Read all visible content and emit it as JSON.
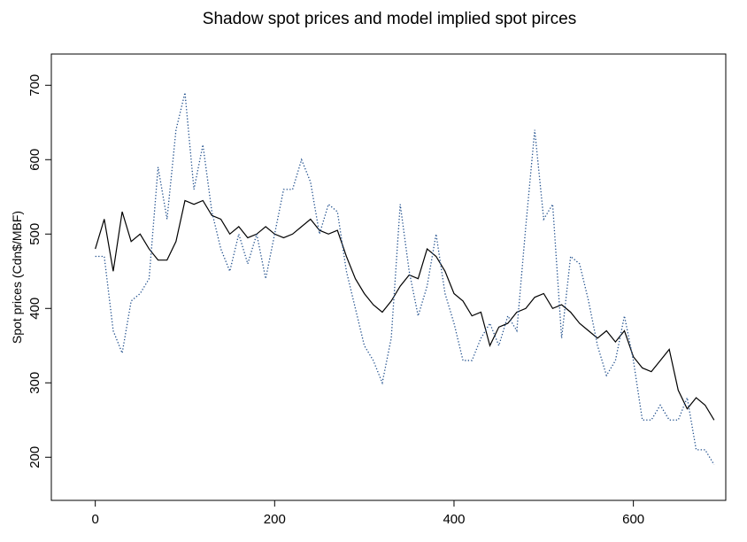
{
  "chart_data": {
    "type": "line",
    "title": "Shadow spot prices and model implied spot pirces",
    "y_label": "Spot prices (Cdn$/MBF)",
    "x": [
      0,
      10,
      20,
      30,
      40,
      50,
      60,
      70,
      80,
      90,
      100,
      110,
      120,
      130,
      140,
      150,
      160,
      170,
      180,
      190,
      200,
      210,
      220,
      230,
      240,
      250,
      260,
      270,
      280,
      290,
      300,
      310,
      320,
      330,
      340,
      350,
      360,
      370,
      380,
      390,
      400,
      410,
      420,
      430,
      440,
      450,
      460,
      470,
      480,
      490,
      500,
      510,
      520,
      530,
      540,
      550,
      560,
      570,
      580,
      590,
      600,
      610,
      620,
      630,
      640,
      650,
      660,
      670,
      680,
      690
    ],
    "series": [
      {
        "color": "#000000",
        "linestyle": "solid",
        "values": [
          480,
          520,
          450,
          530,
          490,
          500,
          480,
          465,
          465,
          490,
          545,
          540,
          545,
          525,
          520,
          500,
          510,
          495,
          500,
          510,
          500,
          495,
          500,
          510,
          520,
          505,
          500,
          505,
          470,
          440,
          420,
          405,
          395,
          410,
          430,
          445,
          440,
          480,
          470,
          450,
          420,
          410,
          390,
          395,
          350,
          375,
          380,
          395,
          400,
          415,
          420,
          400,
          405,
          395,
          380,
          370,
          360,
          370,
          355,
          370,
          335,
          320,
          315,
          330,
          345,
          290,
          265,
          280,
          270,
          250
        ]
      },
      {
        "color": "#1f4e8c",
        "linestyle": "dotted",
        "values": [
          470,
          470,
          370,
          340,
          410,
          420,
          440,
          590,
          520,
          640,
          690,
          560,
          620,
          530,
          480,
          450,
          500,
          460,
          500,
          440,
          500,
          560,
          560,
          600,
          570,
          500,
          540,
          530,
          450,
          400,
          350,
          330,
          300,
          360,
          540,
          450,
          390,
          430,
          500,
          420,
          380,
          330,
          330,
          360,
          380,
          350,
          390,
          370,
          510,
          640,
          520,
          540,
          360,
          470,
          460,
          410,
          350,
          310,
          330,
          390,
          330,
          250,
          250,
          270,
          250,
          250,
          280,
          210,
          210,
          190
        ]
      }
    ],
    "xlim": [
      -49,
      703
    ],
    "ylim": [
      142,
      742
    ],
    "xticks": [
      0,
      200,
      400,
      600
    ],
    "yticks": [
      200,
      300,
      400,
      500,
      600,
      700
    ]
  }
}
